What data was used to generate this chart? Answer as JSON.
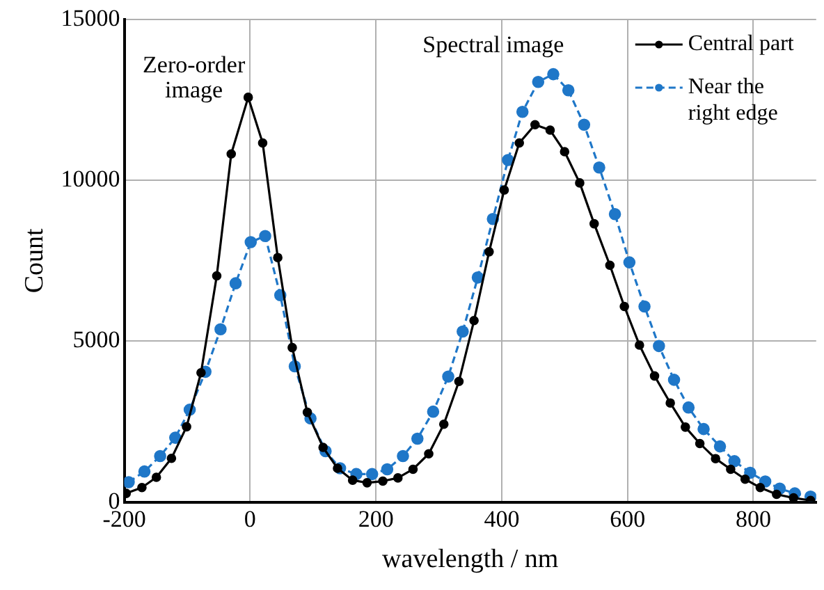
{
  "chart_data": {
    "type": "line",
    "xlabel": "wavelength / nm",
    "ylabel": "Count",
    "xlim": [
      -200,
      900
    ],
    "xticks": [
      -200,
      0,
      200,
      400,
      600,
      800
    ],
    "ylim": [
      0,
      15000
    ],
    "yticks": [
      0,
      5000,
      10000,
      15000
    ],
    "grid": true,
    "legend": "top right",
    "marker": "circle",
    "annotations": [
      {
        "text": "Zero-order image",
        "x": -3,
        "y": 12580
      },
      {
        "text": "Spectral image",
        "x": 453,
        "y": 11730
      }
    ],
    "series": [
      {
        "name": "Central part",
        "color": "#000000",
        "line_style": "solid",
        "x": [
          -197,
          -172,
          -149,
          -125,
          -101,
          -78,
          -53,
          -30,
          -3,
          20,
          44,
          67,
          91,
          116,
          139,
          163,
          186,
          211,
          235,
          259,
          284,
          308,
          332,
          356,
          380,
          404,
          428,
          453,
          477,
          500,
          524,
          547,
          572,
          595,
          619,
          643,
          668,
          692,
          715,
          740,
          764,
          787,
          811,
          837,
          864,
          891
        ],
        "values": [
          270,
          450,
          770,
          1360,
          2340,
          4020,
          7030,
          10820,
          12580,
          11160,
          7600,
          4800,
          2790,
          1700,
          1050,
          680,
          600,
          650,
          750,
          1020,
          1500,
          2420,
          3750,
          5640,
          7780,
          9700,
          11160,
          11730,
          11560,
          10890,
          9920,
          8650,
          7360,
          6080,
          4880,
          3920,
          3080,
          2330,
          1820,
          1350,
          1020,
          710,
          450,
          240,
          130,
          50
        ]
      },
      {
        "name": "Near the right edge",
        "color": "#1f77c8",
        "line_style": "dashed",
        "x": [
          -193,
          -168,
          -143,
          -119,
          -96,
          -71,
          -47,
          -23,
          1,
          24,
          48,
          71,
          96,
          120,
          143,
          169,
          194,
          218,
          243,
          266,
          291,
          315,
          338,
          362,
          386,
          410,
          433,
          458,
          482,
          506,
          531,
          555,
          580,
          603,
          627,
          650,
          674,
          697,
          721,
          747,
          770,
          795,
          819,
          842,
          866,
          891
        ],
        "values": [
          620,
          950,
          1430,
          2000,
          2870,
          4050,
          5370,
          6800,
          8080,
          8270,
          6430,
          4220,
          2600,
          1580,
          1050,
          870,
          870,
          1020,
          1430,
          1970,
          2810,
          3900,
          5300,
          6980,
          8800,
          10630,
          12130,
          13060,
          13300,
          12800,
          11730,
          10400,
          8950,
          7450,
          6080,
          4850,
          3800,
          2940,
          2270,
          1730,
          1270,
          910,
          640,
          420,
          270,
          170
        ]
      }
    ]
  }
}
